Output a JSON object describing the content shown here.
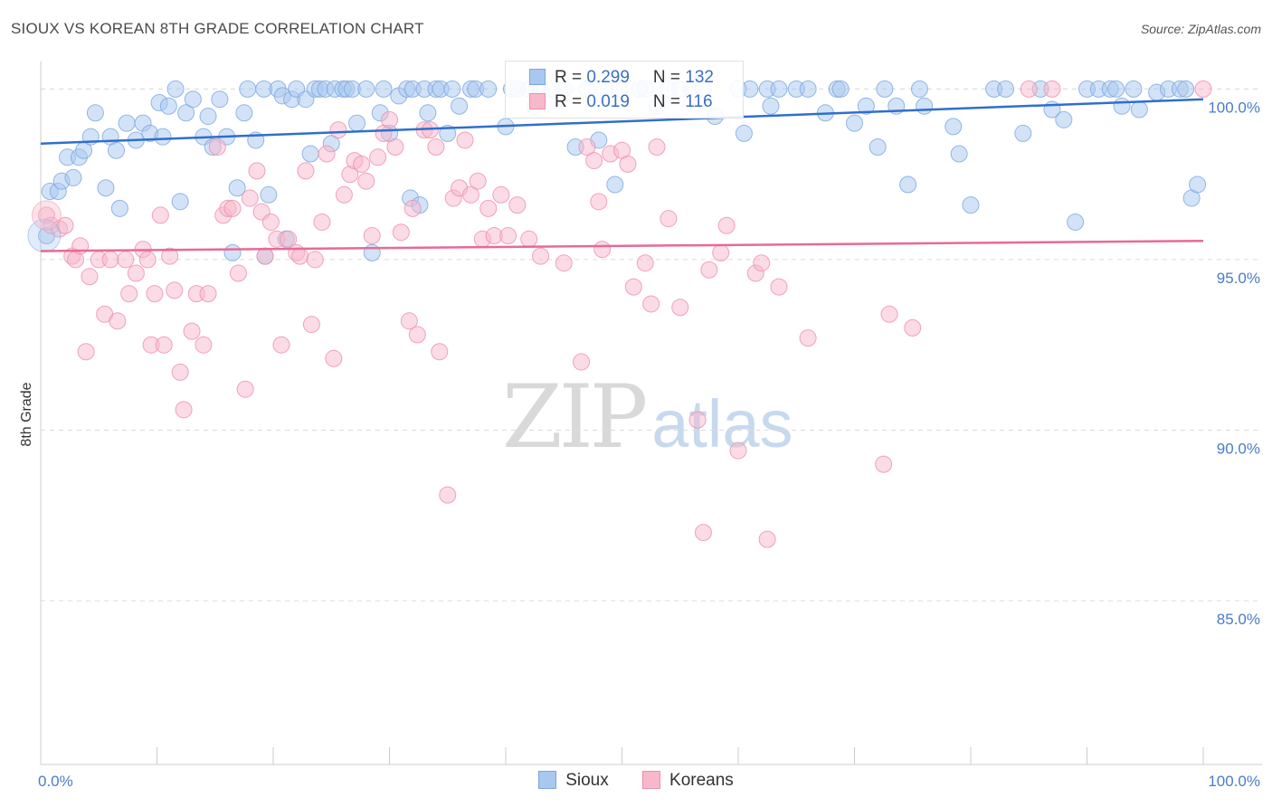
{
  "header": {
    "title": "SIOUX VS KOREAN 8TH GRADE CORRELATION CHART",
    "source": "Source: ZipAtlas.com"
  },
  "watermark": {
    "zip": "ZIP",
    "atlas": "atlas"
  },
  "legend_top": {
    "rows": [
      {
        "r_label": "R = ",
        "r_value": "0.299",
        "n_label": "N = ",
        "n_value": "132",
        "color": "#a8c8f0"
      },
      {
        "r_label": "R = ",
        "r_value": "0.019",
        "n_label": "N = ",
        "n_value": "116",
        "color": "#f7b8cb"
      }
    ]
  },
  "legend_bottom": [
    {
      "label": "Sioux",
      "color": "#a8c8f0"
    },
    {
      "label": "Koreans",
      "color": "#f7b8cb"
    }
  ],
  "chart_data": {
    "type": "scatter",
    "title": "SIOUX VS KOREAN 8TH GRADE CORRELATION CHART",
    "xlabel": "",
    "ylabel": "8th Grade",
    "xlim": [
      0,
      100
    ],
    "ylim": [
      80.2,
      100.7
    ],
    "x_tick_labels": [
      "0.0%",
      "100.0%"
    ],
    "y_ticks": [
      100,
      95,
      90,
      85
    ],
    "y_tick_labels": [
      "100.0%",
      "95.0%",
      "90.0%",
      "85.0%"
    ],
    "grid": true,
    "series": [
      {
        "name": "Sioux",
        "color": "#a8c8f0",
        "stroke": "#7aa6df",
        "trend": {
          "x": [
            0,
            100
          ],
          "y": [
            98.4,
            99.7
          ],
          "color": "#2f6fcc"
        },
        "points": [
          [
            0.5,
            95.7
          ],
          [
            0.8,
            97.0
          ],
          [
            1.5,
            97.0
          ],
          [
            1.8,
            97.3
          ],
          [
            2.3,
            98.0
          ],
          [
            2.8,
            97.4
          ],
          [
            3.3,
            98.0
          ],
          [
            3.7,
            98.2
          ],
          [
            4.3,
            98.6
          ],
          [
            4.7,
            99.3
          ],
          [
            5.6,
            97.1
          ],
          [
            6.0,
            98.6
          ],
          [
            6.5,
            98.2
          ],
          [
            6.8,
            96.5
          ],
          [
            7.4,
            99.0
          ],
          [
            8.2,
            98.5
          ],
          [
            8.8,
            99.0
          ],
          [
            9.4,
            98.7
          ],
          [
            10.2,
            99.6
          ],
          [
            10.5,
            98.6
          ],
          [
            11.0,
            99.5
          ],
          [
            11.6,
            100.0
          ],
          [
            12.0,
            96.7
          ],
          [
            12.5,
            99.3
          ],
          [
            13.1,
            99.7
          ],
          [
            14.0,
            98.6
          ],
          [
            14.4,
            99.2
          ],
          [
            14.8,
            98.3
          ],
          [
            15.4,
            99.7
          ],
          [
            16.0,
            98.6
          ],
          [
            16.5,
            95.2
          ],
          [
            16.9,
            97.1
          ],
          [
            17.5,
            99.3
          ],
          [
            17.8,
            100.0
          ],
          [
            18.5,
            98.5
          ],
          [
            19.2,
            100.0
          ],
          [
            19.3,
            95.1
          ],
          [
            19.6,
            96.9
          ],
          [
            20.4,
            100.0
          ],
          [
            20.8,
            99.8
          ],
          [
            21.1,
            95.6
          ],
          [
            21.6,
            99.7
          ],
          [
            22.0,
            100.0
          ],
          [
            22.8,
            99.7
          ],
          [
            23.2,
            98.1
          ],
          [
            23.6,
            100.0
          ],
          [
            24.0,
            100.0
          ],
          [
            24.5,
            100.0
          ],
          [
            25.0,
            98.4
          ],
          [
            25.3,
            100.0
          ],
          [
            26.0,
            100.0
          ],
          [
            26.3,
            100.0
          ],
          [
            26.8,
            100.0
          ],
          [
            27.2,
            99.0
          ],
          [
            28.0,
            100.0
          ],
          [
            28.5,
            95.2
          ],
          [
            29.2,
            99.3
          ],
          [
            29.5,
            100.0
          ],
          [
            30.0,
            98.7
          ],
          [
            30.8,
            99.8
          ],
          [
            31.5,
            100.0
          ],
          [
            31.8,
            96.8
          ],
          [
            32.0,
            100.0
          ],
          [
            32.6,
            96.6
          ],
          [
            33.0,
            100.0
          ],
          [
            33.3,
            99.3
          ],
          [
            34.0,
            100.0
          ],
          [
            34.4,
            100.0
          ],
          [
            35.0,
            98.7
          ],
          [
            35.4,
            100.0
          ],
          [
            36.0,
            99.5
          ],
          [
            37.0,
            100.0
          ],
          [
            37.4,
            100.0
          ],
          [
            38.5,
            100.0
          ],
          [
            40.0,
            98.9
          ],
          [
            40.5,
            100.0
          ],
          [
            41.0,
            100.0
          ],
          [
            42.0,
            100.0
          ],
          [
            42.5,
            99.5
          ],
          [
            43.0,
            100.0
          ],
          [
            44.0,
            100.0
          ],
          [
            45.0,
            100.0
          ],
          [
            46.0,
            98.3
          ],
          [
            47.0,
            100.0
          ],
          [
            48.0,
            98.5
          ],
          [
            48.5,
            100.0
          ],
          [
            49.4,
            97.2
          ],
          [
            49.8,
            100.0
          ],
          [
            51.5,
            100.0
          ],
          [
            52.0,
            100.0
          ],
          [
            53.0,
            99.5
          ],
          [
            54.0,
            100.0
          ],
          [
            55.0,
            100.0
          ],
          [
            56.0,
            100.0
          ],
          [
            57.0,
            100.0
          ],
          [
            58.0,
            99.2
          ],
          [
            60.0,
            100.0
          ],
          [
            60.5,
            98.7
          ],
          [
            61.0,
            100.0
          ],
          [
            62.5,
            100.0
          ],
          [
            62.8,
            99.5
          ],
          [
            63.5,
            100.0
          ],
          [
            65.0,
            100.0
          ],
          [
            66.0,
            100.0
          ],
          [
            67.5,
            99.3
          ],
          [
            68.5,
            100.0
          ],
          [
            68.8,
            100.0
          ],
          [
            70.0,
            99.0
          ],
          [
            71.0,
            99.5
          ],
          [
            72.0,
            98.3
          ],
          [
            72.6,
            100.0
          ],
          [
            73.6,
            99.5
          ],
          [
            74.6,
            97.2
          ],
          [
            75.6,
            100.0
          ],
          [
            76.0,
            99.5
          ],
          [
            78.5,
            98.9
          ],
          [
            79.0,
            98.1
          ],
          [
            80.0,
            96.6
          ],
          [
            82.0,
            100.0
          ],
          [
            83.0,
            100.0
          ],
          [
            84.5,
            98.7
          ],
          [
            86.0,
            100.0
          ],
          [
            87.0,
            99.4
          ],
          [
            88.0,
            99.1
          ],
          [
            89.0,
            96.1
          ],
          [
            90.0,
            100.0
          ],
          [
            91.0,
            100.0
          ],
          [
            92.0,
            100.0
          ],
          [
            92.5,
            100.0
          ],
          [
            93.0,
            99.5
          ],
          [
            94.0,
            100.0
          ],
          [
            94.5,
            99.4
          ],
          [
            96.0,
            99.9
          ],
          [
            97.0,
            100.0
          ],
          [
            98.0,
            100.0
          ],
          [
            98.5,
            100.0
          ],
          [
            99.0,
            96.8
          ],
          [
            99.5,
            97.2
          ]
        ]
      },
      {
        "name": "Koreans",
        "color": "#f7b8cb",
        "stroke": "#ee8fac",
        "trend": {
          "x": [
            0,
            100
          ],
          "y": [
            95.25,
            95.55
          ],
          "color": "#e86a93"
        },
        "points": [
          [
            0.5,
            96.3
          ],
          [
            0.9,
            96.0
          ],
          [
            1.6,
            95.9
          ],
          [
            2.1,
            96.0
          ],
          [
            2.7,
            95.1
          ],
          [
            3.0,
            95.0
          ],
          [
            3.4,
            95.4
          ],
          [
            3.9,
            92.3
          ],
          [
            4.2,
            94.5
          ],
          [
            5.0,
            95.0
          ],
          [
            5.5,
            93.4
          ],
          [
            6.0,
            95.0
          ],
          [
            6.6,
            93.2
          ],
          [
            7.3,
            95.0
          ],
          [
            7.6,
            94.0
          ],
          [
            8.2,
            94.6
          ],
          [
            8.8,
            95.3
          ],
          [
            9.2,
            95.0
          ],
          [
            9.5,
            92.5
          ],
          [
            9.8,
            94.0
          ],
          [
            10.3,
            96.3
          ],
          [
            10.6,
            92.5
          ],
          [
            11.1,
            95.1
          ],
          [
            11.5,
            94.1
          ],
          [
            12.0,
            91.7
          ],
          [
            12.3,
            90.6
          ],
          [
            13.0,
            92.9
          ],
          [
            13.4,
            94.0
          ],
          [
            14.0,
            92.5
          ],
          [
            14.4,
            94.0
          ],
          [
            15.2,
            98.3
          ],
          [
            15.7,
            96.3
          ],
          [
            16.1,
            96.5
          ],
          [
            16.5,
            96.5
          ],
          [
            17.0,
            94.6
          ],
          [
            17.6,
            91.2
          ],
          [
            18.0,
            96.8
          ],
          [
            18.6,
            97.6
          ],
          [
            19.0,
            96.4
          ],
          [
            19.3,
            95.1
          ],
          [
            19.8,
            96.1
          ],
          [
            20.3,
            95.6
          ],
          [
            20.7,
            92.5
          ],
          [
            21.3,
            95.6
          ],
          [
            22.0,
            95.2
          ],
          [
            22.3,
            95.1
          ],
          [
            22.8,
            97.6
          ],
          [
            23.3,
            93.1
          ],
          [
            23.6,
            95.0
          ],
          [
            24.2,
            96.1
          ],
          [
            24.6,
            98.1
          ],
          [
            25.2,
            92.1
          ],
          [
            25.6,
            98.8
          ],
          [
            26.1,
            96.9
          ],
          [
            26.6,
            97.5
          ],
          [
            27.0,
            97.9
          ],
          [
            27.6,
            97.8
          ],
          [
            28.0,
            97.3
          ],
          [
            28.5,
            95.7
          ],
          [
            29.0,
            98.0
          ],
          [
            29.5,
            98.7
          ],
          [
            30.0,
            99.1
          ],
          [
            30.5,
            98.3
          ],
          [
            31.0,
            95.8
          ],
          [
            31.7,
            93.2
          ],
          [
            32.0,
            96.5
          ],
          [
            32.4,
            92.8
          ],
          [
            33.0,
            98.8
          ],
          [
            33.5,
            98.8
          ],
          [
            34.0,
            98.3
          ],
          [
            34.3,
            92.3
          ],
          [
            35.0,
            88.1
          ],
          [
            35.5,
            96.8
          ],
          [
            36.0,
            97.1
          ],
          [
            36.5,
            98.5
          ],
          [
            37.0,
            96.9
          ],
          [
            37.6,
            97.3
          ],
          [
            38.0,
            95.6
          ],
          [
            38.5,
            96.5
          ],
          [
            39.0,
            95.7
          ],
          [
            39.6,
            96.9
          ],
          [
            40.2,
            95.7
          ],
          [
            41.0,
            96.6
          ],
          [
            42.0,
            95.6
          ],
          [
            43.0,
            95.1
          ],
          [
            45.0,
            94.9
          ],
          [
            46.5,
            92.0
          ],
          [
            47.0,
            98.3
          ],
          [
            47.6,
            97.9
          ],
          [
            48.0,
            96.7
          ],
          [
            48.3,
            95.3
          ],
          [
            49.0,
            98.1
          ],
          [
            50.0,
            98.2
          ],
          [
            50.5,
            97.8
          ],
          [
            51.0,
            94.2
          ],
          [
            52.0,
            94.9
          ],
          [
            52.5,
            93.7
          ],
          [
            53.0,
            98.3
          ],
          [
            54.0,
            96.2
          ],
          [
            55.0,
            93.6
          ],
          [
            56.5,
            90.3
          ],
          [
            57.0,
            87.0
          ],
          [
            57.5,
            94.7
          ],
          [
            58.5,
            95.2
          ],
          [
            59.0,
            96.0
          ],
          [
            60.0,
            89.4
          ],
          [
            61.5,
            94.6
          ],
          [
            62.0,
            94.9
          ],
          [
            62.5,
            86.8
          ],
          [
            63.5,
            94.2
          ],
          [
            66.0,
            92.7
          ],
          [
            72.5,
            89.0
          ],
          [
            73.0,
            93.4
          ],
          [
            75.0,
            93.0
          ],
          [
            85.0,
            100.0
          ],
          [
            87.0,
            100.0
          ],
          [
            100.0,
            100.0
          ]
        ]
      }
    ]
  }
}
